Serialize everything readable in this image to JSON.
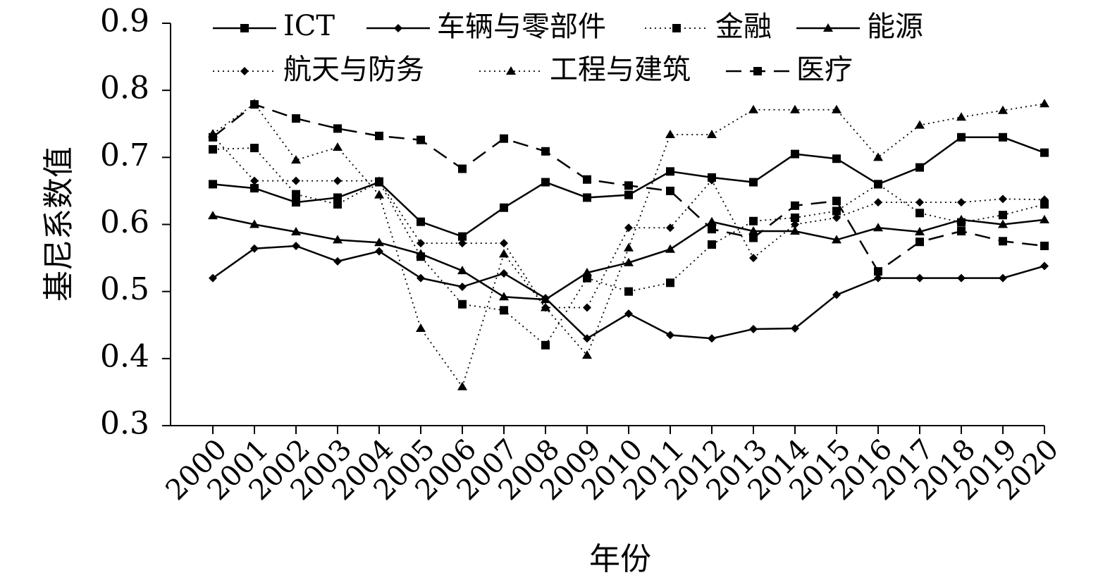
{
  "chart_data": {
    "type": "line",
    "title": "",
    "xlabel": "年份",
    "ylabel": "基尼系数值",
    "ylim": [
      0.3,
      0.9
    ],
    "y_ticks": [
      "0.3",
      "0.4",
      "0.5",
      "0.6",
      "0.7",
      "0.8",
      "0.9"
    ],
    "categories": [
      "2000",
      "2001",
      "2002",
      "2003",
      "2004",
      "2005",
      "2006",
      "2007",
      "2008",
      "2009",
      "2010",
      "2011",
      "2012",
      "2013",
      "2014",
      "2015",
      "2016",
      "2017",
      "2018",
      "2019",
      "2020"
    ],
    "grid": false,
    "legend_position": "top",
    "series": [
      {
        "name": "ICT",
        "line_style": "solid",
        "marker": "square",
        "values": [
          0.66,
          0.654,
          0.633,
          0.64,
          0.663,
          0.604,
          0.582,
          0.625,
          0.663,
          0.64,
          0.644,
          0.679,
          0.67,
          0.663,
          0.705,
          0.698,
          0.66,
          0.685,
          0.73,
          0.73,
          0.707
        ]
      },
      {
        "name": "车辆与零部件",
        "line_style": "solid",
        "marker": "diamond",
        "values": [
          0.52,
          0.564,
          0.568,
          0.545,
          0.56,
          0.52,
          0.507,
          0.527,
          0.49,
          0.43,
          0.467,
          0.435,
          0.43,
          0.444,
          0.445,
          0.495,
          0.52,
          0.52,
          0.52,
          0.52,
          0.538
        ]
      },
      {
        "name": "金融",
        "line_style": "dotted",
        "marker": "square",
        "values": [
          0.712,
          0.714,
          0.645,
          0.63,
          0.664,
          0.552,
          0.481,
          0.472,
          0.42,
          0.52,
          0.5,
          0.513,
          0.57,
          0.605,
          0.61,
          0.62,
          0.66,
          0.617,
          0.603,
          0.614,
          0.63
        ]
      },
      {
        "name": "能源",
        "line_style": "solid",
        "marker": "triangle",
        "values": [
          0.613,
          0.6,
          0.589,
          0.577,
          0.573,
          0.556,
          0.531,
          0.492,
          0.488,
          0.528,
          0.543,
          0.563,
          0.604,
          0.59,
          0.59,
          0.577,
          0.595,
          0.589,
          0.607,
          0.6,
          0.607
        ]
      },
      {
        "name": "航天与防务",
        "line_style": "dotted",
        "marker": "diamond",
        "values": [
          0.732,
          0.665,
          0.665,
          0.665,
          0.665,
          0.572,
          0.572,
          0.572,
          0.476,
          0.476,
          0.595,
          0.595,
          0.666,
          0.55,
          0.6,
          0.61,
          0.633,
          0.633,
          0.633,
          0.638,
          0.637
        ]
      },
      {
        "name": "工程与建筑",
        "line_style": "dotted",
        "marker": "triangle",
        "values": [
          0.735,
          0.78,
          0.696,
          0.715,
          0.644,
          0.445,
          0.358,
          0.556,
          0.476,
          0.405,
          0.565,
          0.734,
          0.734,
          0.771,
          0.771,
          0.771,
          0.7,
          0.748,
          0.76,
          0.77,
          0.78
        ]
      },
      {
        "name": "医疗",
        "line_style": "dashed",
        "marker": "square",
        "values": [
          0.73,
          0.779,
          0.758,
          0.743,
          0.732,
          0.726,
          0.683,
          0.728,
          0.709,
          0.667,
          0.658,
          0.65,
          0.593,
          0.58,
          0.628,
          0.635,
          0.53,
          0.574,
          0.59,
          0.575,
          0.568
        ]
      }
    ]
  }
}
